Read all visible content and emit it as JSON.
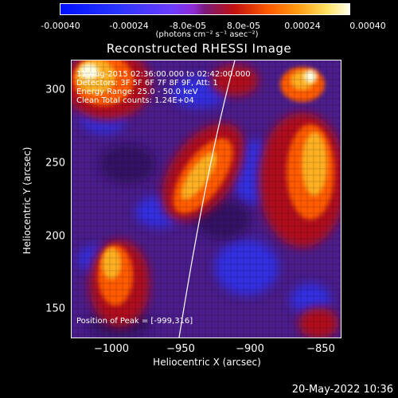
{
  "colorbar": {
    "tick_labels": [
      "-0.00040",
      "-0.00024",
      "-8.0e-05",
      "8.0e-05",
      "0.00024",
      "0.00040"
    ],
    "units": "(photons cm⁻² s⁻¹ asec⁻²)"
  },
  "plot": {
    "title": "Reconstructed RHESSI Image",
    "info_lines": [
      "11-Aug-2015 02:36:00.000 to 02:42:00.000",
      "Detectors: 3F 5F 6F 7F 8F 9F, Att: 1",
      "Energy Range: 25.0 - 50.0 keV",
      "Clean     Total counts: 1.24E+04"
    ],
    "peak_label": "Position of Peak = [-999,316]",
    "xlabel": "Heliocentric X (arcsec)",
    "ylabel": "Heliocentric Y (arcsec)",
    "xticks": [
      "−1000",
      "−950",
      "−900",
      "−850"
    ],
    "yticks": [
      "300",
      "250",
      "200",
      "150"
    ]
  },
  "timestamp": "20-May-2022 10:36",
  "colors": {
    "background": "#000000",
    "map_low": "#2a35ff",
    "map_mid": "#6b1fa0",
    "map_high": "#ffffe8"
  }
}
